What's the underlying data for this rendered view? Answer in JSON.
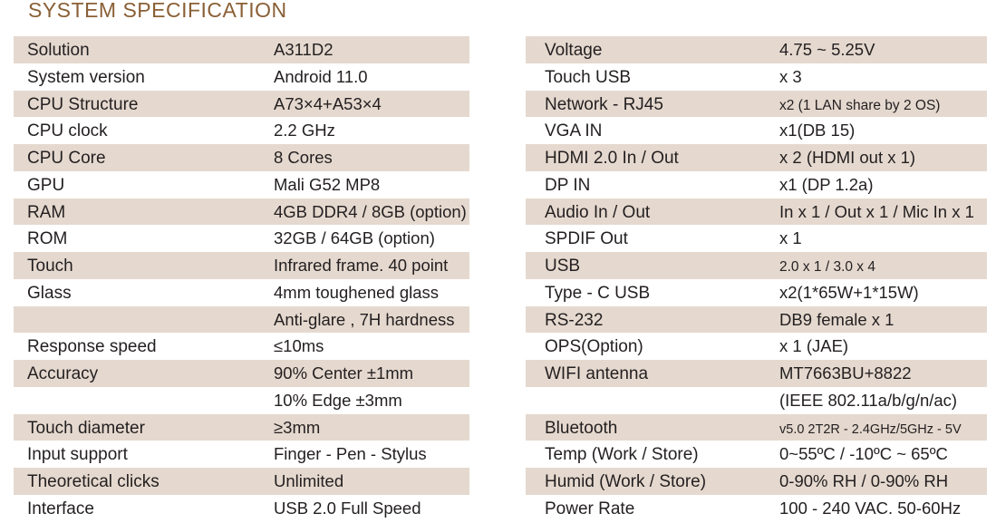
{
  "title": "SYSTEM SPECIFICATION",
  "left_rows": [
    {
      "label": "Solution",
      "value": "A311D2"
    },
    {
      "label": "System version",
      "value": "Android 11.0"
    },
    {
      "label": "CPU Structure",
      "value": "A73×4+A53×4"
    },
    {
      "label": "CPU clock",
      "value": "2.2 GHz"
    },
    {
      "label": "CPU Core",
      "value": "8 Cores"
    },
    {
      "label": "GPU",
      "value": "Mali G52 MP8"
    },
    {
      "label": "RAM",
      "value": "4GB DDR4 / 8GB (option)"
    },
    {
      "label": "ROM",
      "value": "32GB / 64GB (option)"
    },
    {
      "label": "Touch",
      "value": "Infrared frame. 40 point"
    },
    {
      "label": "Glass",
      "value": "4mm toughened glass"
    },
    {
      "label": "",
      "value": "Anti-glare , 7H hardness"
    },
    {
      "label": "Response speed",
      "value": "≤10ms"
    },
    {
      "label": "Accuracy",
      "value": "90% Center ±1mm"
    },
    {
      "label": "",
      "value": "10% Edge  ±3mm"
    },
    {
      "label": "Touch diameter",
      "value": "≥3mm"
    },
    {
      "label": "Input support",
      "value": "Finger - Pen - Stylus"
    },
    {
      "label": "Theoretical clicks",
      "value": "Unlimited"
    },
    {
      "label": "Interface",
      "value": "USB 2.0 Full Speed"
    }
  ],
  "right_rows": [
    {
      "label": "Voltage",
      "value": "4.75 ~ 5.25V"
    },
    {
      "label": "Touch USB",
      "value": "x 3"
    },
    {
      "label": "Network - RJ45",
      "value": "x2 (1 LAN share by 2 OS)"
    },
    {
      "label": "VGA IN",
      "value": "x1(DB 15)"
    },
    {
      "label": "HDMI 2.0 In / Out",
      "value": "x 2 (HDMI out x 1)"
    },
    {
      "label": "DP IN",
      "value": "x1 (DP 1.2a)"
    },
    {
      "label": "Audio In / Out",
      "value": "In x 1 / Out x 1 / Mic In x 1"
    },
    {
      "label": "SPDIF Out",
      "value": "x 1"
    },
    {
      "label": "USB",
      "value": "2.0 x 1 / 3.0 x 4"
    },
    {
      "label": "Type - C USB",
      "value": "x2(1*65W+1*15W)"
    },
    {
      "label": "RS-232",
      "value": "DB9 female x 1"
    },
    {
      "label": "OPS(Option)",
      "value": "x 1 (JAE)"
    },
    {
      "label": "WIFI antenna",
      "value": "MT7663BU+8822"
    },
    {
      "label": "",
      "value": "(IEEE 802.11a/b/g/n/ac)"
    },
    {
      "label": "Bluetooth",
      "value": "v5.0 2T2R - 2.4GHz/5GHz - 5V"
    },
    {
      "label": "Temp (Work / Store)",
      "value": "0~55ºC / -10ºC ~ 65ºC"
    },
    {
      "label": "Humid (Work / Store)",
      "value": "0-90% RH / 0-90% RH"
    },
    {
      "label": "Power Rate",
      "value": "100 - 240 VAC. 50-60Hz"
    }
  ],
  "colors": {
    "title": "#8a5f35",
    "shade": "#e5d9cf",
    "text": "#231f20"
  }
}
